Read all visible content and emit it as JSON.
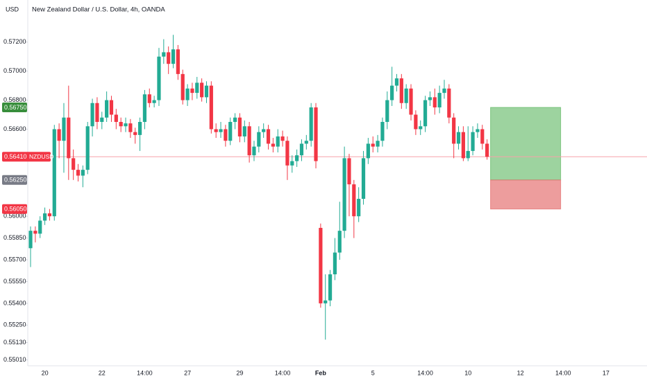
{
  "chart_data": {
    "type": "candlestick",
    "title": "New Zealand Dollar / U.S. Dollar, 4h, OANDA",
    "currency": "USD",
    "up_color": "#22ab94",
    "down_color": "#f23645",
    "categories": [
      null,
      null,
      null,
      "20",
      null,
      null,
      null,
      null,
      null,
      null,
      null,
      null,
      null,
      null,
      null,
      "22",
      null,
      null,
      null,
      null,
      null,
      null,
      null,
      null,
      "14:00",
      null,
      null,
      null,
      null,
      null,
      null,
      null,
      null,
      "27",
      null,
      null,
      null,
      null,
      null,
      null,
      null,
      null,
      null,
      null,
      "29",
      null,
      null,
      null,
      null,
      null,
      null,
      null,
      null,
      "14:00",
      null,
      null,
      null,
      null,
      null,
      null,
      null,
      "Feb",
      null,
      null,
      null,
      null,
      null,
      null,
      null,
      null,
      null,
      null,
      "5",
      null,
      null,
      null,
      null,
      null,
      null,
      null,
      null,
      null,
      null,
      "14:00",
      null,
      null,
      null,
      null,
      null,
      null,
      null,
      null,
      "10",
      null,
      null,
      null,
      null,
      null,
      null,
      null,
      null,
      null,
      null,
      "12",
      null,
      null,
      null,
      null,
      null,
      null,
      null,
      null,
      "14:00",
      null,
      null,
      null,
      null,
      null,
      null,
      null,
      null,
      "17",
      null,
      null,
      null,
      null,
      null,
      null
    ],
    "open": [
      0.5578,
      0.559,
      0.5588,
      0.5597,
      0.5602,
      0.56,
      0.566,
      0.5652,
      0.5668,
      0.564,
      0.5632,
      0.5628,
      0.5632,
      0.5662,
      0.5678,
      0.5665,
      0.5668,
      0.568,
      0.567,
      0.5665,
      0.5662,
      0.5664,
      0.5658,
      0.5656,
      0.5665,
      0.5684,
      0.5678,
      0.568,
      0.571,
      0.5713,
      0.5705,
      0.5715,
      0.5698,
      0.568,
      0.5688,
      0.5685,
      0.5692,
      0.5682,
      0.569,
      0.566,
      0.5658,
      0.566,
      0.5652,
      0.5665,
      0.5668,
      0.5655,
      0.5662,
      0.5642,
      0.5648,
      0.5658,
      0.566,
      0.565,
      0.5648,
      0.5655,
      0.5652,
      0.5635,
      0.5638,
      0.5642,
      0.565,
      0.5652,
      0.5675,
      0.5592,
      0.554,
      0.5542,
      0.556,
      0.5575,
      0.559,
      0.564,
      0.5622,
      0.56,
      0.5612,
      0.564,
      0.565,
      0.5648,
      0.5652,
      0.5665,
      0.568,
      0.569,
      0.5695,
      0.5678,
      0.5688,
      0.567,
      0.566,
      0.5662,
      0.568,
      0.5682,
      0.5675,
      0.5685,
      0.5688,
      0.5668,
      0.565,
      0.5658,
      0.564,
      0.5645,
      0.5658,
      0.566,
      0.565,
      null,
      null,
      null,
      null,
      null,
      null,
      null,
      null,
      null,
      null,
      null,
      null,
      null,
      null,
      null,
      null,
      null,
      null,
      null,
      null,
      null,
      null,
      null,
      null,
      null,
      null,
      null,
      null,
      null,
      null,
      null
    ],
    "high": [
      0.5593,
      0.5593,
      0.56,
      0.5606,
      0.5605,
      0.5663,
      0.5664,
      0.5678,
      0.569,
      0.5646,
      0.5636,
      0.5635,
      0.5665,
      0.5681,
      0.5682,
      0.5672,
      0.5686,
      0.5683,
      0.5674,
      0.5668,
      0.5668,
      0.5667,
      0.5661,
      0.5668,
      0.5687,
      0.5688,
      0.5683,
      0.5716,
      0.5722,
      0.5717,
      0.5725,
      0.5718,
      0.5701,
      0.5691,
      0.5692,
      0.5696,
      0.5695,
      0.5693,
      0.5693,
      0.5664,
      0.5665,
      0.5663,
      0.5668,
      0.5671,
      0.5671,
      0.5666,
      0.5665,
      0.5652,
      0.5662,
      0.5664,
      0.5663,
      0.5654,
      0.566,
      0.5659,
      0.5655,
      0.5642,
      0.5646,
      0.5653,
      0.5656,
      0.5678,
      0.5678,
      0.5595,
      0.556,
      0.5563,
      0.5585,
      0.561,
      0.5648,
      0.5643,
      0.5625,
      0.562,
      0.5645,
      0.5654,
      0.5655,
      0.5656,
      0.5668,
      0.5686,
      0.5703,
      0.5698,
      0.5698,
      0.5691,
      0.5691,
      0.5673,
      0.5666,
      0.5683,
      0.5686,
      0.5688,
      0.569,
      0.5694,
      0.5691,
      0.5671,
      0.5662,
      0.5662,
      0.5662,
      0.5662,
      0.5664,
      0.5663,
      0.5653,
      null,
      null,
      null,
      null,
      null,
      null,
      null,
      null,
      null,
      null,
      null,
      null,
      null,
      null,
      null,
      null,
      null,
      null,
      null,
      null,
      null,
      null,
      null,
      null,
      null,
      null,
      null,
      null,
      null,
      null,
      null
    ],
    "low": [
      0.5565,
      0.5582,
      0.5585,
      0.5594,
      0.5597,
      0.5597,
      0.564,
      0.563,
      0.5625,
      0.5625,
      0.5624,
      0.562,
      0.5629,
      0.5655,
      0.566,
      0.566,
      0.5665,
      0.5665,
      0.566,
      0.5658,
      0.5658,
      0.5654,
      0.565,
      0.5645,
      0.566,
      0.5675,
      0.5675,
      0.5676,
      0.5705,
      0.5698,
      0.5702,
      0.5694,
      0.5677,
      0.5676,
      0.568,
      0.5681,
      0.5679,
      0.5678,
      0.5657,
      0.5654,
      0.5654,
      0.5648,
      0.5649,
      0.566,
      0.5651,
      0.5651,
      0.5637,
      0.5638,
      0.5644,
      0.5654,
      0.5646,
      0.5644,
      0.5644,
      0.5648,
      0.5625,
      0.563,
      0.5634,
      0.5638,
      0.5646,
      0.5648,
      0.5633,
      0.5537,
      0.5515,
      0.5538,
      0.5556,
      0.557,
      0.5585,
      0.56,
      0.5585,
      0.5596,
      0.5608,
      0.5636,
      0.5644,
      0.5644,
      0.5648,
      0.566,
      0.5676,
      0.5686,
      0.5674,
      0.5674,
      0.5666,
      0.5656,
      0.5656,
      0.5658,
      0.5676,
      0.567,
      0.5671,
      0.5681,
      0.5664,
      0.564,
      0.5646,
      0.5638,
      0.5638,
      0.5642,
      0.5654,
      0.5646,
      0.5639,
      null,
      null,
      null,
      null,
      null,
      null,
      null,
      null,
      null,
      null,
      null,
      null,
      null,
      null,
      null,
      null,
      null,
      null,
      null,
      null,
      null,
      null,
      null,
      null,
      null,
      null,
      null,
      null,
      null,
      null,
      null
    ],
    "close": [
      0.559,
      0.5588,
      0.5597,
      0.5602,
      0.56,
      0.566,
      0.5652,
      0.5668,
      0.564,
      0.5632,
      0.5628,
      0.5632,
      0.5662,
      0.5678,
      0.5665,
      0.5668,
      0.568,
      0.567,
      0.5665,
      0.5662,
      0.5664,
      0.5658,
      0.5656,
      0.5665,
      0.5684,
      0.5678,
      0.568,
      0.571,
      0.5713,
      0.5705,
      0.5715,
      0.5698,
      0.568,
      0.5688,
      0.5685,
      0.5692,
      0.5682,
      0.569,
      0.566,
      0.5658,
      0.566,
      0.5652,
      0.5665,
      0.5668,
      0.5655,
      0.5662,
      0.5642,
      0.5648,
      0.5658,
      0.566,
      0.565,
      0.5648,
      0.5655,
      0.5652,
      0.5635,
      0.5638,
      0.5642,
      0.565,
      0.5652,
      0.5675,
      0.5638,
      0.554,
      0.5542,
      0.556,
      0.5575,
      0.559,
      0.564,
      0.5622,
      0.56,
      0.5612,
      0.564,
      0.565,
      0.5648,
      0.5652,
      0.5665,
      0.568,
      0.569,
      0.5695,
      0.5678,
      0.5688,
      0.567,
      0.566,
      0.5662,
      0.568,
      0.5682,
      0.5675,
      0.5685,
      0.5688,
      0.5668,
      0.565,
      0.5658,
      0.564,
      0.5645,
      0.5658,
      0.566,
      0.565,
      0.5641,
      null,
      null,
      null,
      null,
      null,
      null,
      null,
      null,
      null,
      null,
      null,
      null,
      null,
      null,
      null,
      null,
      null,
      null,
      null,
      null,
      null,
      null,
      null,
      null,
      null,
      null,
      null,
      null,
      null,
      null,
      null
    ],
    "ylim": [
      0.5497,
      0.5749
    ],
    "yticks": [
      {
        "value": 0.572,
        "label": "0.57200"
      },
      {
        "value": 0.57,
        "label": "0.57000"
      },
      {
        "value": 0.568,
        "label": "0.56800"
      },
      {
        "value": 0.566,
        "label": "0.56600"
      },
      {
        "value": 0.56,
        "label": "0.56000"
      },
      {
        "value": 0.5585,
        "label": "0.55850"
      },
      {
        "value": 0.557,
        "label": "0.55700"
      },
      {
        "value": 0.5555,
        "label": "0.55550"
      },
      {
        "value": 0.554,
        "label": "0.55400"
      },
      {
        "value": 0.5525,
        "label": "0.55250"
      },
      {
        "value": 0.5513,
        "label": "0.55130"
      },
      {
        "value": 0.5501,
        "label": "0.55010"
      }
    ],
    "grid": false,
    "position": {
      "take_profit": 0.5675,
      "entry": 0.5625,
      "stop_loss": 0.5605,
      "profit_color": "#4caf50",
      "loss_color": "#e57373"
    },
    "price_labels": [
      {
        "value": 0.5675,
        "label": "0.56750",
        "color": "#388e3c"
      },
      {
        "value": 0.5641,
        "label": "0.56410",
        "name": "NZDUSD",
        "color": "#f23645"
      },
      {
        "value": 0.5625,
        "label": "0.56250",
        "color": "#787b86"
      },
      {
        "value": 0.5605,
        "label": "0.56050",
        "color": "#f23645"
      }
    ],
    "last_price_line": {
      "value": 0.5641,
      "color": "#f7a1a9"
    }
  }
}
